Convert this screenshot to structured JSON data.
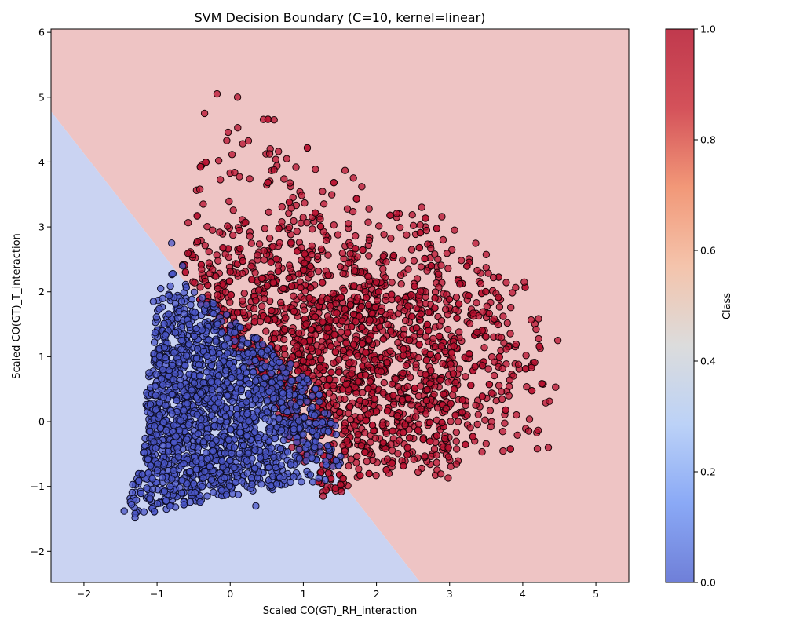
{
  "chart_data": {
    "type": "scatter",
    "title": "SVM Decision Boundary (C=10, kernel=linear)",
    "xlabel": "Scaled CO(GT)_RH_interaction",
    "ylabel": "Scaled CO(GT)_T_interaction",
    "xlim": [
      -2.45,
      5.45
    ],
    "ylim": [
      -2.48,
      6.05
    ],
    "x_ticks": [
      -2,
      -1,
      0,
      1,
      2,
      3,
      4,
      5
    ],
    "y_ticks": [
      -2,
      -1,
      0,
      1,
      2,
      3,
      4,
      5,
      6
    ],
    "grid": false,
    "decision_boundary": {
      "line": [
        [
          -2.45,
          4.78
        ],
        [
          2.6,
          -2.48
        ]
      ],
      "class0_region_color": "#cad3f2",
      "class1_region_color": "#eec4c4"
    },
    "colorbar": {
      "label": "Class",
      "range": [
        0.0,
        1.0
      ],
      "ticks": [
        "0.0",
        "0.2",
        "0.4",
        "0.6",
        "0.8",
        "1.0"
      ],
      "colors": [
        "#6f7fd8",
        "#8aa9f6",
        "#bcd2f7",
        "#dcdcdc",
        "#f4c4ac",
        "#f29878",
        "#d4525a",
        "#c0394d"
      ]
    },
    "series": [
      {
        "class": 0,
        "color": "#4b57c8",
        "edge_color": "#0d0d26",
        "n_points": 1900,
        "outline_polygon": [
          [
            -1.45,
            -1.38
          ],
          [
            -1.3,
            -1.48
          ],
          [
            -0.6,
            -1.28
          ],
          [
            0.3,
            -1.1
          ],
          [
            0.9,
            -1.0
          ],
          [
            1.4,
            -0.85
          ],
          [
            1.55,
            -0.55
          ],
          [
            1.45,
            0.0
          ],
          [
            1.15,
            0.6
          ],
          [
            0.6,
            1.1
          ],
          [
            0.1,
            1.5
          ],
          [
            -0.35,
            1.95
          ],
          [
            -0.7,
            2.3
          ],
          [
            -0.75,
            2.75
          ],
          [
            -0.85,
            2.05
          ],
          [
            -1.0,
            1.85
          ],
          [
            -1.05,
            1.2
          ],
          [
            -1.15,
            0.6
          ],
          [
            -1.15,
            0.0
          ],
          [
            -1.2,
            -0.6
          ],
          [
            -1.35,
            -1.0
          ]
        ],
        "sample_points": [
          [
            -1.45,
            -1.38
          ],
          [
            -1.3,
            -1.48
          ],
          [
            -1.3,
            -1.42
          ],
          [
            -1.35,
            -1.28
          ],
          [
            -0.8,
            2.75
          ],
          [
            -0.65,
            2.4
          ],
          [
            0.35,
            -1.3
          ],
          [
            1.3,
            -0.9
          ],
          [
            1.45,
            -0.6
          ],
          [
            -1.05,
            1.85
          ],
          [
            -0.95,
            2.05
          ]
        ]
      },
      {
        "class": 1,
        "color": "#b8102f",
        "edge_color": "#1a0508",
        "n_points": 2100,
        "outline_polygon": [
          [
            -0.7,
            2.6
          ],
          [
            -0.2,
            5.05
          ],
          [
            0.6,
            4.65
          ],
          [
            1.1,
            4.2
          ],
          [
            2.0,
            3.6
          ],
          [
            2.8,
            3.25
          ],
          [
            3.3,
            2.9
          ],
          [
            4.0,
            2.15
          ],
          [
            4.5,
            1.25
          ],
          [
            4.45,
            0.55
          ],
          [
            4.2,
            -0.42
          ],
          [
            3.2,
            -0.6
          ],
          [
            3.0,
            -0.88
          ],
          [
            2.3,
            -0.75
          ],
          [
            1.8,
            -0.95
          ],
          [
            1.3,
            -1.15
          ],
          [
            0.9,
            -0.6
          ],
          [
            0.6,
            0.2
          ],
          [
            0.2,
            1.0
          ],
          [
            -0.3,
            1.6
          ],
          [
            -0.65,
            2.1
          ]
        ],
        "sample_points": [
          [
            -0.18,
            5.05
          ],
          [
            0.1,
            5.0
          ],
          [
            -0.35,
            4.75
          ],
          [
            0.6,
            4.65
          ],
          [
            4.48,
            1.25
          ],
          [
            4.45,
            0.53
          ],
          [
            4.35,
            -0.4
          ],
          [
            4.2,
            -0.42
          ],
          [
            1.52,
            -1.08
          ],
          [
            1.27,
            -1.15
          ],
          [
            4.02,
            2.15
          ],
          [
            3.6,
            2.22
          ],
          [
            2.98,
            -0.87
          ],
          [
            1.8,
            3.62
          ]
        ]
      }
    ]
  }
}
